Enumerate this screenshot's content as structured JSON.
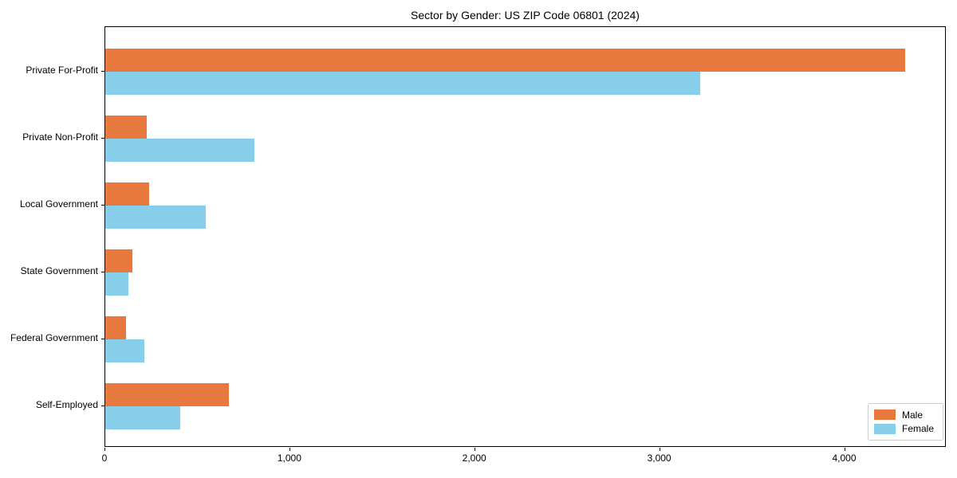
{
  "chart": {
    "title": "Sector by Gender: US ZIP Code 06801 (2024)"
  },
  "chart_data": {
    "type": "bar",
    "orientation": "horizontal",
    "title": "Sector by Gender: US ZIP Code 06801 (2024)",
    "categories": [
      "Private For-Profit",
      "Private Non-Profit",
      "Local Government",
      "State Government",
      "Federal Government",
      "Self-Employed"
    ],
    "series": [
      {
        "name": "Male",
        "color": "#e8793e",
        "values": [
          4325,
          225,
          235,
          145,
          110,
          670
        ]
      },
      {
        "name": "Female",
        "color": "#87ceeb",
        "values": [
          3215,
          805,
          545,
          125,
          210,
          405
        ]
      }
    ],
    "xlabel": "",
    "ylabel": "",
    "xlim": [
      0,
      4550
    ],
    "xticks": [
      0,
      1000,
      2000,
      3000,
      4000
    ],
    "xtick_labels": [
      "0",
      "1,000",
      "2,000",
      "3,000",
      "4,000"
    ],
    "grid": false,
    "legend_position": "lower right"
  }
}
